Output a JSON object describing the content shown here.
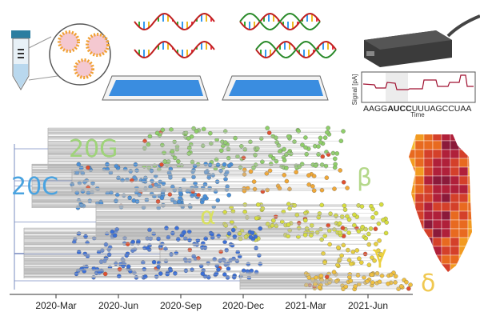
{
  "clades": [
    {
      "label": "20G"
    },
    {
      "label": "20C"
    },
    {
      "label": "β"
    },
    {
      "label": "α"
    },
    {
      "label": "γ"
    },
    {
      "label": "δ"
    }
  ],
  "time_axis": {
    "ticks": [
      "2020-Mar",
      "2020-Jun",
      "2020-Sep",
      "2020-Dec",
      "2021-Mar",
      "2021-Jun"
    ]
  },
  "nanopore": {
    "y_label": "Signal [pA]",
    "x_label": "Time",
    "sequence": [
      "AAGG",
      "AUCC",
      "UUUAGCCUAA"
    ]
  }
}
